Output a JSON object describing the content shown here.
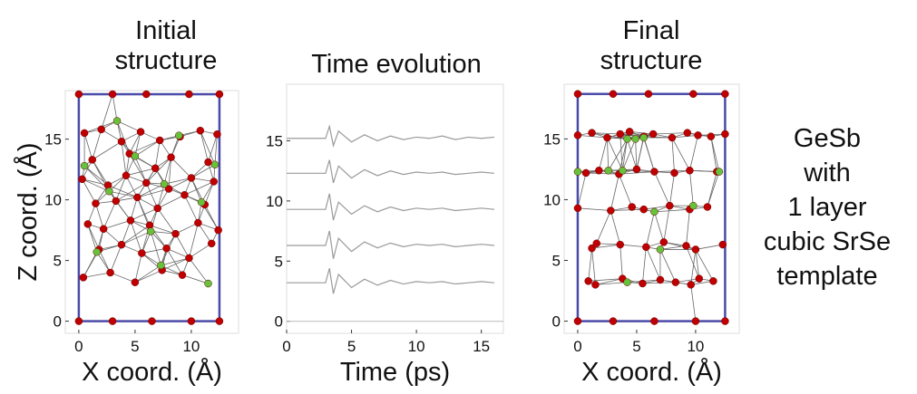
{
  "chart_data": [
    {
      "type": "scatter",
      "title": [
        "Initial",
        "structure"
      ],
      "x_label": "X coord. (Å)",
      "y_label": "Z coord. (Å)",
      "xlim": [
        -1.2,
        14.2
      ],
      "ylim": [
        -1,
        19
      ],
      "xticks": [
        0,
        5,
        10
      ],
      "yticks": [
        0,
        5,
        10,
        15
      ],
      "cell": [
        12.5,
        18.7
      ],
      "cell_color": "#4a4aa8",
      "series": [
        {
          "color": "#c00000",
          "x": [
            0,
            3,
            6,
            9.8,
            12.5,
            0,
            3,
            6.5,
            10,
            12.5,
            0.5,
            2,
            3.8,
            5.5,
            7.2,
            9,
            10.8,
            12.3,
            1.2,
            4.5,
            6.8,
            8.2,
            11.5,
            0.3,
            2.6,
            4.2,
            6,
            8,
            10,
            12,
            1.5,
            3.3,
            5.2,
            7,
            9.4,
            11.2,
            0.8,
            2.2,
            4.6,
            6.3,
            8.6,
            10.6,
            12.4,
            1.8,
            3.8,
            5.6,
            7.8,
            9.8,
            11.8,
            0.4,
            2.8,
            5,
            7.4,
            9.2
          ],
          "y": [
            18.7,
            18.7,
            18.7,
            18.7,
            18.7,
            0,
            0,
            0,
            0,
            0,
            15.5,
            15.8,
            14.8,
            15.6,
            14.9,
            15.2,
            15.7,
            15.4,
            13.3,
            13.8,
            12.6,
            13.5,
            13.1,
            11.7,
            11.2,
            12,
            11.4,
            10.9,
            11.8,
            11.5,
            9.7,
            9.9,
            10.2,
            9.3,
            10.4,
            9.6,
            8,
            7.6,
            8.3,
            7.9,
            7.2,
            8.1,
            7.5,
            5.9,
            6.3,
            5.6,
            6,
            5.2,
            6.4,
            3.6,
            4,
            3.2,
            4.2,
            3.8
          ]
        },
        {
          "color": "#66c23a",
          "x": [
            3.4,
            8.9,
            0.5,
            12.1,
            5,
            7.6,
            10.9,
            2.7,
            6.4,
            1.6,
            7.3,
            11.5
          ],
          "y": [
            16.5,
            15.3,
            12.8,
            12.9,
            13.6,
            11.3,
            9.8,
            10.7,
            7.4,
            5.7,
            4.6,
            3.1
          ]
        }
      ]
    },
    {
      "type": "line",
      "x_label": "Time (ps)",
      "title": [
        "Time evolution"
      ],
      "xlim": [
        0,
        16.7
      ],
      "ylim": [
        -1,
        19.7
      ],
      "xticks": [
        0,
        5,
        10,
        15
      ],
      "yticks": [
        0,
        5,
        10,
        15
      ],
      "x": [
        0,
        1,
        2,
        3,
        3.3,
        3.6,
        4,
        5,
        6,
        7,
        8,
        9,
        10,
        11,
        12,
        13,
        14,
        15,
        16
      ],
      "series": [
        {
          "color": "#9a9a9a",
          "values": [
            15.2,
            15.2,
            15.2,
            15.2,
            16.2,
            14.6,
            15.8,
            14.9,
            15.5,
            15,
            15.4,
            15.1,
            15.3,
            15.2,
            15.4,
            15.1,
            15.3,
            15.2,
            15.3
          ]
        },
        {
          "color": "#9a9a9a",
          "values": [
            12.3,
            12.3,
            12.3,
            12.3,
            13.4,
            11.5,
            12.9,
            11.9,
            12.6,
            12.1,
            12.5,
            12.2,
            12.4,
            12.3,
            12.4,
            12.2,
            12.3,
            12.4,
            12.3
          ]
        },
        {
          "color": "#9a9a9a",
          "values": [
            9.3,
            9.3,
            9.3,
            9.3,
            10.6,
            8.4,
            9.9,
            8.9,
            9.6,
            9.1,
            9.5,
            9.2,
            9.4,
            9.3,
            9.4,
            9.2,
            9.3,
            9.4,
            9.3
          ]
        },
        {
          "color": "#9a9a9a",
          "values": [
            6.3,
            6.3,
            6.3,
            6.3,
            7.5,
            5.2,
            6.9,
            5.8,
            6.6,
            6.1,
            6.5,
            6.2,
            6.4,
            6.3,
            6.4,
            6.2,
            6.3,
            6.4,
            6.3
          ]
        },
        {
          "color": "#9a9a9a",
          "values": [
            3.2,
            3.2,
            3.2,
            3.2,
            4.4,
            2.3,
            3.9,
            2.8,
            3.5,
            3,
            3.4,
            3.1,
            3.3,
            3.2,
            3.3,
            3.1,
            3.2,
            3.3,
            3.2
          ]
        }
      ]
    },
    {
      "type": "scatter",
      "title": [
        "Final",
        "structure"
      ],
      "x_label": "X coord. (Å)",
      "xlim": [
        -1.15,
        13.7
      ],
      "ylim": [
        -1,
        19.5
      ],
      "xticks": [
        0,
        5,
        10
      ],
      "yticks": [
        0,
        5,
        10,
        15
      ],
      "cell": [
        12.5,
        18.7
      ],
      "cell_color": "#4a4aa8",
      "series": [
        {
          "color": "#c00000",
          "x": [
            0,
            3,
            6.5,
            10,
            12.5,
            0,
            3,
            6,
            9.8,
            12.5,
            0.9,
            1.5,
            3.8,
            5.5,
            7,
            8.3,
            9.6,
            10.3,
            11.5,
            1.2,
            1.6,
            3.6,
            5.8,
            7.3,
            9.2,
            10,
            12.3,
            0,
            2.8,
            4.6,
            5.6,
            7.8,
            9.5,
            11,
            0.7,
            1.8,
            3.5,
            5,
            6.5,
            8.2,
            9.5,
            11.8,
            0,
            1.2,
            2.5,
            3.6,
            4.4,
            5.6,
            6.4,
            8,
            9.3,
            10.2,
            11.3,
            12.5
          ],
          "y": [
            0,
            0,
            0,
            0,
            0,
            18.7,
            18.7,
            18.7,
            18.7,
            18.7,
            3.3,
            3,
            3.5,
            3.1,
            3.4,
            3.2,
            3,
            3.5,
            3.3,
            6,
            6.4,
            6.3,
            6.1,
            6.5,
            6.2,
            5.9,
            6.3,
            9.3,
            9.1,
            9.4,
            9.2,
            9.5,
            9.2,
            9.4,
            12.2,
            12.4,
            12.1,
            12.5,
            12.3,
            12.2,
            12.4,
            12.3,
            15.3,
            15.5,
            15.1,
            15.4,
            15.6,
            15.2,
            15.4,
            15.1,
            15.5,
            15.3,
            15.2,
            15.4
          ]
        },
        {
          "color": "#66c23a",
          "x": [
            4.9,
            5.6,
            12,
            0,
            3.8,
            4.2,
            7,
            2.6,
            9.8,
            6.5,
            4.2
          ],
          "y": [
            15,
            15.1,
            12.3,
            12.3,
            12.4,
            15,
            5.9,
            12.4,
            9.5,
            9,
            3.2
          ]
        }
      ]
    }
  ],
  "annotation_lines": [
    "GeSb",
    "with",
    "1 layer",
    "cubic SrSe",
    "template"
  ]
}
